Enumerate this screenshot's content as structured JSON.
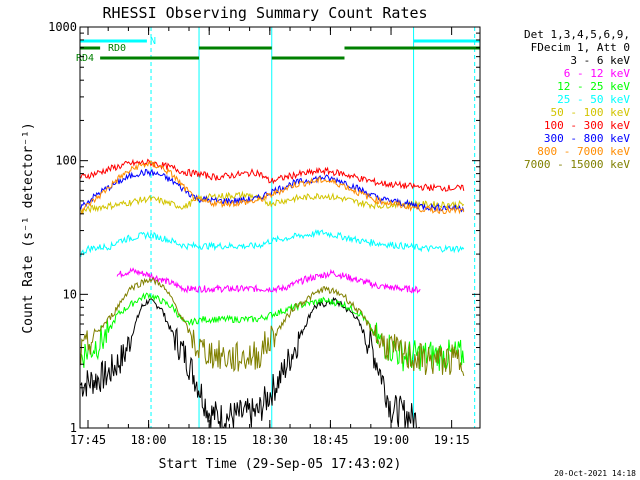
{
  "chart_data": {
    "type": "line",
    "title": "RHESSI Observing Summary Count Rates",
    "xlabel": "Start Time (29-Sep-05 17:43:02)",
    "ylabel": "Count Rate (s⁻¹ detector⁻¹)",
    "y_scale": "log",
    "ylim": [
      1,
      1000
    ],
    "xlim": [
      17.717,
      19.367
    ],
    "x_ticks": [
      "17:45",
      "18:00",
      "18:15",
      "18:30",
      "18:45",
      "19:00",
      "19:15"
    ],
    "y_ticks": [
      "1",
      "10",
      "100",
      "1000"
    ],
    "legend_header": [
      "Det 1,3,4,5,6,9,",
      "FDecim 1, Att 0"
    ],
    "legend_position": "right",
    "series": [
      {
        "name": "3 - 6 keV",
        "color": "#000000",
        "points": [
          [
            17.72,
            2.1
          ],
          [
            17.83,
            2.5
          ],
          [
            17.9,
            3.5
          ],
          [
            17.97,
            8
          ],
          [
            18.0,
            9
          ],
          [
            18.05,
            8
          ],
          [
            18.1,
            5
          ],
          [
            18.15,
            3.5
          ],
          [
            18.2,
            2.2
          ],
          [
            18.25,
            1.3
          ],
          [
            18.3,
            1.2
          ],
          [
            18.45,
            1.3
          ],
          [
            18.55,
            2.5
          ],
          [
            18.68,
            8
          ],
          [
            18.77,
            9
          ],
          [
            18.85,
            7
          ],
          [
            18.92,
            4
          ],
          [
            18.96,
            2.5
          ],
          [
            19.0,
            1.4
          ],
          [
            19.05,
            1.3
          ],
          [
            19.12,
            1.1
          ]
        ]
      },
      {
        "name": "6 - 12 keV",
        "color": "#ff00ff",
        "points": [
          [
            17.87,
            14
          ],
          [
            17.93,
            15
          ],
          [
            18.0,
            14
          ],
          [
            18.05,
            13
          ],
          [
            18.1,
            12
          ],
          [
            18.15,
            11
          ],
          [
            18.25,
            11
          ],
          [
            18.3,
            11
          ],
          [
            18.38,
            11
          ],
          [
            18.55,
            11
          ],
          [
            18.65,
            13
          ],
          [
            18.76,
            14.5
          ],
          [
            18.85,
            13
          ],
          [
            18.95,
            11.5
          ],
          [
            19.05,
            11
          ],
          [
            19.12,
            10.8
          ]
        ]
      },
      {
        "name": "12 - 25 keV",
        "color": "#00ff00",
        "points": [
          [
            17.72,
            3.5
          ],
          [
            17.77,
            4
          ],
          [
            17.83,
            5
          ],
          [
            17.87,
            7
          ],
          [
            17.95,
            9
          ],
          [
            18.0,
            10
          ],
          [
            18.05,
            9
          ],
          [
            18.1,
            8
          ],
          [
            18.15,
            6
          ],
          [
            18.22,
            6.5
          ],
          [
            18.3,
            6.5
          ],
          [
            18.38,
            6.5
          ],
          [
            18.45,
            6.5
          ],
          [
            18.55,
            7.5
          ],
          [
            18.65,
            8.5
          ],
          [
            18.72,
            9
          ],
          [
            18.8,
            8.5
          ],
          [
            18.88,
            7
          ],
          [
            18.95,
            4.5
          ],
          [
            19.05,
            3.5
          ],
          [
            19.15,
            3.5
          ],
          [
            19.3,
            3.5
          ]
        ]
      },
      {
        "name": "25 - 50 keV",
        "color": "#00ffff",
        "points": [
          [
            17.72,
            20
          ],
          [
            17.75,
            22
          ],
          [
            17.85,
            23
          ],
          [
            17.87,
            25
          ],
          [
            17.95,
            27
          ],
          [
            18.0,
            28
          ],
          [
            18.07,
            26
          ],
          [
            18.15,
            23
          ],
          [
            18.2,
            23
          ],
          [
            18.28,
            23
          ],
          [
            18.35,
            23
          ],
          [
            18.45,
            23
          ],
          [
            18.5,
            25
          ],
          [
            18.6,
            27
          ],
          [
            18.72,
            29
          ],
          [
            18.8,
            27
          ],
          [
            18.88,
            25
          ],
          [
            18.95,
            24
          ],
          [
            19.05,
            23
          ],
          [
            19.15,
            22
          ],
          [
            19.3,
            22
          ]
        ]
      },
      {
        "name": "50 - 100 keV",
        "color": "#d2c400",
        "points": [
          [
            17.72,
            42
          ],
          [
            17.8,
            45
          ],
          [
            17.88,
            47
          ],
          [
            17.95,
            50
          ],
          [
            18.0,
            52
          ],
          [
            18.05,
            50
          ],
          [
            18.1,
            47
          ],
          [
            18.15,
            45
          ],
          [
            18.2,
            52
          ],
          [
            18.28,
            54
          ],
          [
            18.35,
            55
          ],
          [
            18.42,
            55
          ],
          [
            18.5,
            48
          ],
          [
            18.6,
            52
          ],
          [
            18.72,
            55
          ],
          [
            18.8,
            52
          ],
          [
            18.88,
            48
          ],
          [
            18.95,
            46
          ],
          [
            19.05,
            48
          ],
          [
            19.15,
            47
          ],
          [
            19.3,
            47
          ]
        ]
      },
      {
        "name": "100 - 300 keV",
        "color": "#ff0000",
        "points": [
          [
            17.72,
            75
          ],
          [
            17.78,
            80
          ],
          [
            17.85,
            88
          ],
          [
            17.92,
            95
          ],
          [
            18.0,
            97
          ],
          [
            18.05,
            93
          ],
          [
            18.1,
            88
          ],
          [
            18.15,
            82
          ],
          [
            18.2,
            80
          ],
          [
            18.28,
            75
          ],
          [
            18.35,
            78
          ],
          [
            18.45,
            82
          ],
          [
            18.5,
            70
          ],
          [
            18.6,
            78
          ],
          [
            18.72,
            84
          ],
          [
            18.8,
            80
          ],
          [
            18.88,
            73
          ],
          [
            18.95,
            68
          ],
          [
            19.05,
            65
          ],
          [
            19.15,
            63
          ],
          [
            19.3,
            62
          ]
        ]
      },
      {
        "name": "300 - 800 keV",
        "color": "#0000ff",
        "points": [
          [
            17.72,
            45
          ],
          [
            17.8,
            58
          ],
          [
            17.88,
            70
          ],
          [
            17.95,
            80
          ],
          [
            18.0,
            82
          ],
          [
            18.05,
            78
          ],
          [
            18.1,
            70
          ],
          [
            18.15,
            60
          ],
          [
            18.2,
            52
          ],
          [
            18.28,
            50
          ],
          [
            18.35,
            50
          ],
          [
            18.45,
            52
          ],
          [
            18.5,
            58
          ],
          [
            18.6,
            68
          ],
          [
            18.72,
            75
          ],
          [
            18.8,
            70
          ],
          [
            18.88,
            60
          ],
          [
            18.95,
            52
          ],
          [
            19.05,
            48
          ],
          [
            19.15,
            45
          ],
          [
            19.3,
            44
          ]
        ]
      },
      {
        "name": "800 - 7000 keV",
        "color": "#ff8c00",
        "points": [
          [
            17.72,
            42
          ],
          [
            17.8,
            55
          ],
          [
            17.88,
            75
          ],
          [
            17.95,
            90
          ],
          [
            18.0,
            95
          ],
          [
            18.05,
            90
          ],
          [
            18.1,
            78
          ],
          [
            18.15,
            62
          ],
          [
            18.2,
            50
          ],
          [
            18.28,
            48
          ],
          [
            18.35,
            48
          ],
          [
            18.45,
            50
          ],
          [
            18.5,
            55
          ],
          [
            18.6,
            66
          ],
          [
            18.72,
            72
          ],
          [
            18.8,
            66
          ],
          [
            18.88,
            56
          ],
          [
            18.95,
            50
          ],
          [
            19.05,
            46
          ],
          [
            19.15,
            43
          ],
          [
            19.3,
            42
          ]
        ]
      },
      {
        "name": "7000 - 15000 keV",
        "color": "#808000",
        "points": [
          [
            17.72,
            3.5
          ],
          [
            17.78,
            5
          ],
          [
            17.85,
            7
          ],
          [
            17.92,
            11
          ],
          [
            18.0,
            13
          ],
          [
            18.05,
            12
          ],
          [
            18.1,
            9
          ],
          [
            18.15,
            6
          ],
          [
            18.2,
            4
          ],
          [
            18.28,
            3.5
          ],
          [
            18.35,
            3.3
          ],
          [
            18.45,
            3.5
          ],
          [
            18.52,
            5
          ],
          [
            18.6,
            8
          ],
          [
            18.72,
            11
          ],
          [
            18.8,
            10
          ],
          [
            18.88,
            7
          ],
          [
            18.95,
            4.5
          ],
          [
            19.05,
            3.5
          ],
          [
            19.15,
            3.2
          ],
          [
            19.3,
            3.2
          ]
        ]
      }
    ],
    "flags": [
      {
        "name": "N",
        "color": "#00ffff",
        "segments": [
          [
            17.717,
            17.993
          ],
          [
            19.093,
            19.367
          ]
        ]
      },
      {
        "name": "RD0",
        "color": "#008000",
        "segments": [
          [
            17.717,
            17.8
          ],
          [
            18.208,
            18.508
          ],
          [
            18.808,
            19.367
          ]
        ]
      },
      {
        "name": "RD4",
        "color": "#008000",
        "segments": [
          [
            17.8,
            18.208
          ],
          [
            18.508,
            18.808
          ]
        ]
      }
    ],
    "vertical_markers": {
      "solid_color": "#00ffff",
      "solid": [
        17.717,
        18.208,
        18.508,
        19.093
      ],
      "dashed": [
        18.01,
        19.345
      ]
    }
  },
  "footer": {
    "timestamp": "20-Oct-2021 14:18"
  }
}
